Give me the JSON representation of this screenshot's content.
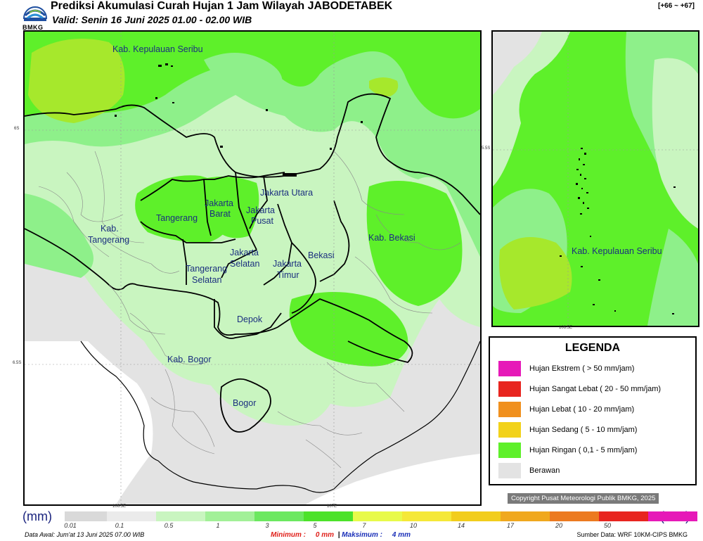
{
  "header": {
    "title": "Prediksi Akumulasi Curah Hujan 1 Jam Wilayah JABODETABEK",
    "valid": "Valid: Senin 16 Juni 2025 01.00 - 02.00 WIB",
    "code": "[+66 ~ +67]",
    "logo_text": "BMKG"
  },
  "main_map": {
    "labels": {
      "kepulauan_seribu": "Kab. Kepulauan Seribu",
      "jakarta_utara": "Jakarta Utara",
      "jakarta_barat_1": "Jakarta",
      "jakarta_barat_2": "Barat",
      "jakarta_pusat_1": "Jakarta",
      "jakarta_pusat_2": "Pusat",
      "tangerang": "Tangerang",
      "kab_tangerang_1": "Kab.",
      "kab_tangerang_2": "Tangerang",
      "jakarta_selatan_1": "Jakarta",
      "jakarta_selatan_2": "Selatan",
      "jakarta_timur_1": "Jakarta",
      "jakarta_timur_2": "Timur",
      "bekasi": "Bekasi",
      "kab_bekasi": "Kab. Bekasi",
      "tangsel_1": "Tangerang",
      "tangsel_2": "Selatan",
      "depok": "Depok",
      "kab_bogor": "Kab. Bogor",
      "bogor": "Bogor"
    },
    "coords": {
      "lat_6s": "6S",
      "lat_6_5s": "6.5S",
      "lon_106_5e": "106.5E",
      "lon_107e": "107E"
    }
  },
  "inset_map": {
    "label": "Kab. Kepulauan Seribu",
    "lat": "5.5S",
    "lon": "106.5E"
  },
  "legend": {
    "title": "LEGENDA",
    "items": [
      {
        "label": "Hujan Ekstrem ( > 50 mm/jam)",
        "color": "#e619b8"
      },
      {
        "label": "Hujan Sangat Lebat ( 20 - 50 mm/jam)",
        "color": "#e8251f"
      },
      {
        "label": "Hujan Lebat ( 10 - 20 mm/jam)",
        "color": "#f0901e"
      },
      {
        "label": "Hujan Sedang ( 5 - 10 mm/jam)",
        "color": "#f2d21a"
      },
      {
        "label": "Hujan Ringan ( 0,1 - 5 mm/jam)",
        "color": "#5ef02a"
      },
      {
        "label": "Berawan",
        "color": "#e3e3e3"
      }
    ]
  },
  "copyright": "Copyright Pusat Meteorologi Publik BMKG, 2025",
  "scale": {
    "unit": "(mm)",
    "ticks": [
      "0.01",
      "0.1",
      "0.5",
      "1",
      "3",
      "5",
      "7",
      "10",
      "14",
      "17",
      "20",
      "50"
    ],
    "colors": [
      "#d9d9d9",
      "#e8e8e8",
      "#c9f5c0",
      "#a2f098",
      "#6ce860",
      "#4ce22a",
      "#e8fa4a",
      "#f5e838",
      "#f2cd1c",
      "#f0a81e",
      "#ee8a1e",
      "#ec6a20",
      "#e8251f",
      "#e619b8"
    ]
  },
  "footer": {
    "data_awal": "Data Awal: Jum'at 13 Juni 2025 07.00 WIB",
    "minimum_label": "Minimum :",
    "minimum_value": "0 mm",
    "maximum_label": "Maksimum :",
    "maximum_value": "4 mm",
    "sumber": "Sumber Data: WRF 10KM-CIPS BMKG"
  },
  "colors": {
    "light_green": "#c9f5c0",
    "mid_green": "#8ef08a",
    "bright_green": "#5ef02a",
    "yellow_green": "#a6e82c",
    "gray": "#e3e3e3"
  }
}
